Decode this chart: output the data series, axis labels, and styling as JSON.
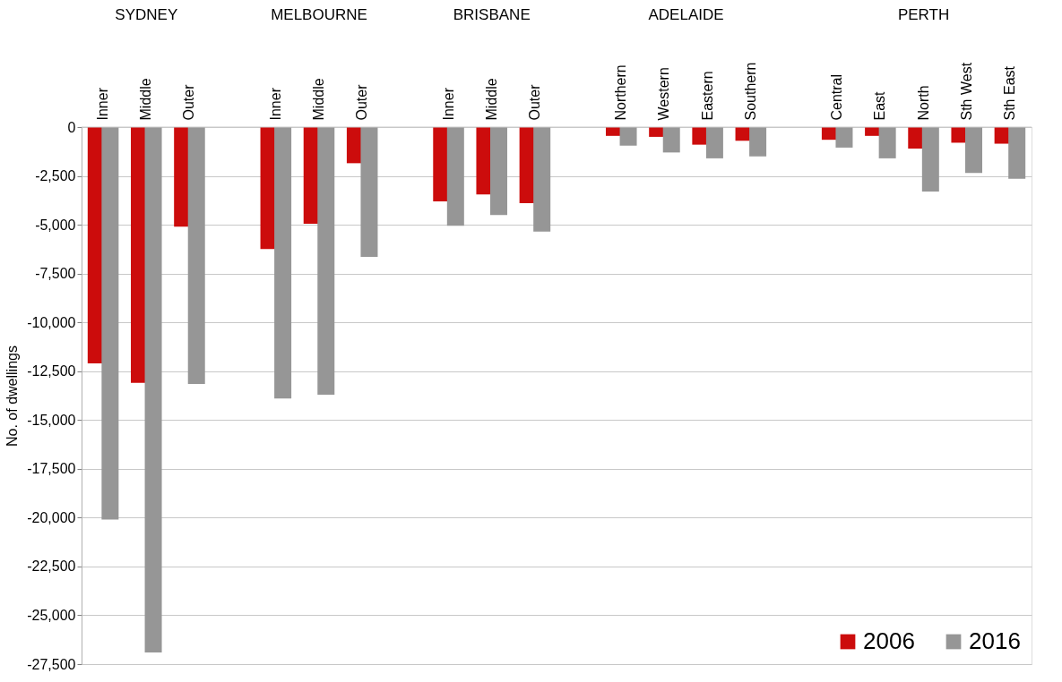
{
  "chart_data": {
    "type": "bar",
    "ylabel": "No. of dwellings",
    "categories": [
      "Inner",
      "Middle",
      "Outer",
      null,
      "Inner",
      "Middle",
      "Outer",
      null,
      "Inner",
      "Middle",
      "Outer",
      null,
      "Northern",
      "Western",
      "Eastern",
      "Southern",
      null,
      "Central",
      "East",
      "North",
      "Sth West",
      "Sth East"
    ],
    "series": [
      {
        "name": "2006",
        "color": "#cc0c0c",
        "values": [
          -12100,
          -13100,
          -5100,
          null,
          -6250,
          -4950,
          -1850,
          null,
          -3800,
          -3450,
          -3900,
          null,
          -450,
          -500,
          -900,
          -700,
          null,
          -650,
          -450,
          -1100,
          -800,
          -850
        ]
      },
      {
        "name": "2016",
        "color": "#969696",
        "values": [
          -20100,
          -26900,
          -13150,
          null,
          -13900,
          -13700,
          -6650,
          null,
          -5050,
          -4500,
          -5350,
          null,
          -950,
          -1300,
          -1600,
          -1500,
          null,
          -1050,
          -1600,
          -3300,
          -2350,
          -2650
        ]
      }
    ],
    "annotations": [
      "SYDNEY",
      "MELBOURNE",
      "BRISBANE",
      "ADELAIDE",
      "PERTH"
    ],
    "ylim": [
      -27500,
      0
    ],
    "yticks": [
      0,
      {
        "value": -2500,
        "label": "-2,500"
      },
      {
        "value": -5000,
        "label": "-5,000"
      },
      {
        "value": -7500,
        "label": "-7,500"
      },
      {
        "value": -10000,
        "label": "-10,000"
      },
      {
        "value": -12500,
        "label": "-12,500"
      },
      {
        "value": -15000,
        "label": "-15,000"
      },
      {
        "value": -17500,
        "label": "-17,500"
      },
      {
        "value": -20000,
        "label": "-20,000"
      },
      {
        "value": -22500,
        "label": "-22,500"
      },
      {
        "value": -25000,
        "label": "-25,000"
      },
      {
        "value": -27500,
        "label": "-27,500"
      }
    ],
    "grid": "y",
    "legend": "bottom right"
  }
}
